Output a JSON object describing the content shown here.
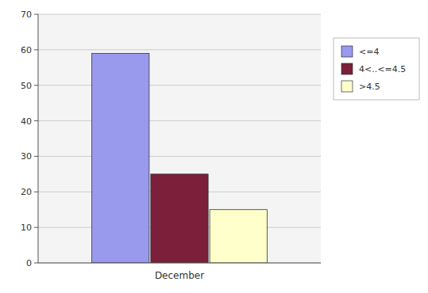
{
  "chart_data": {
    "type": "bar",
    "categories": [
      "December"
    ],
    "series": [
      {
        "name": "<=4",
        "color": "#9999EE",
        "values": [
          59
        ]
      },
      {
        "name": "4<..<=4.5",
        "color": "#7B1F3A",
        "values": [
          25
        ]
      },
      {
        "name": ">4.5",
        "color": "#FFFFCC",
        "values": [
          15
        ]
      }
    ],
    "ylim": [
      0,
      70
    ],
    "yticks": [
      0,
      10,
      20,
      30,
      40,
      50,
      60,
      70
    ],
    "grid": true,
    "legend": "right"
  }
}
